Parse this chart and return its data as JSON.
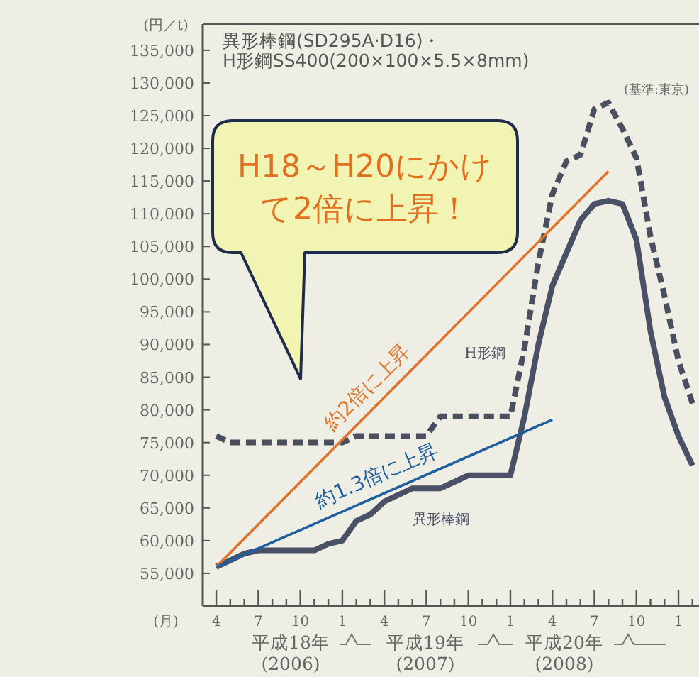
{
  "chart_data": {
    "type": "line",
    "title": "異形棒鋼(SD295A·D16)・",
    "subtitle": "H形鋼SS400(200×100×5.5×8mm)",
    "xlabel": "(月)",
    "ylabel": "(円／t)",
    "xlim": [
      "2006-03-02",
      "2009-02-15"
    ],
    "ylim": [
      50000,
      139000
    ],
    "xticks": [
      {
        "value": "2006-04",
        "label": "4"
      },
      {
        "value": "2006-05",
        "label": null
      },
      {
        "value": "2006-06",
        "label": null
      },
      {
        "value": "2006-07",
        "label": "7"
      },
      {
        "value": "2006-08",
        "label": null
      },
      {
        "value": "2006-09",
        "label": null
      },
      {
        "value": "2006-10",
        "label": "10"
      },
      {
        "value": "2006-11",
        "label": null
      },
      {
        "value": "2006-12",
        "label": null
      },
      {
        "value": "2007-01",
        "label": "1"
      },
      {
        "value": "2007-02",
        "label": null
      },
      {
        "value": "2007-03",
        "label": null
      },
      {
        "value": "2007-04",
        "label": "4"
      },
      {
        "value": "2007-05",
        "label": null
      },
      {
        "value": "2007-06",
        "label": null
      },
      {
        "value": "2007-07",
        "label": "7"
      },
      {
        "value": "2007-08",
        "label": null
      },
      {
        "value": "2007-09",
        "label": null
      },
      {
        "value": "2007-10",
        "label": "10"
      },
      {
        "value": "2007-11",
        "label": null
      },
      {
        "value": "2007-12",
        "label": null
      },
      {
        "value": "2008-01",
        "label": "1"
      },
      {
        "value": "2008-02",
        "label": null
      },
      {
        "value": "2008-03",
        "label": null
      },
      {
        "value": "2008-04",
        "label": "4"
      },
      {
        "value": "2008-05",
        "label": null
      },
      {
        "value": "2008-06",
        "label": null
      },
      {
        "value": "2008-07",
        "label": "7"
      },
      {
        "value": "2008-08",
        "label": null
      },
      {
        "value": "2008-09",
        "label": null
      },
      {
        "value": "2008-10",
        "label": "10"
      },
      {
        "value": "2008-11",
        "label": null
      },
      {
        "value": "2008-12",
        "label": null
      },
      {
        "value": "2009-01",
        "label": "1"
      },
      {
        "value": "2009-02",
        "label": null
      }
    ],
    "yticks": [
      {
        "value": 55000,
        "label": "55,000"
      },
      {
        "value": 60000,
        "label": "60,000"
      },
      {
        "value": 65000,
        "label": "65,000"
      },
      {
        "value": 70000,
        "label": "70,000"
      },
      {
        "value": 75000,
        "label": "75,000"
      },
      {
        "value": 80000,
        "label": "80,000"
      },
      {
        "value": 85000,
        "label": "85,000"
      },
      {
        "value": 90000,
        "label": "90,000"
      },
      {
        "value": 95000,
        "label": "95,000"
      },
      {
        "value": 100000,
        "label": "100,000"
      },
      {
        "value": 105000,
        "label": "105,000"
      },
      {
        "value": 110000,
        "label": "110,000"
      },
      {
        "value": 115000,
        "label": "115,000"
      },
      {
        "value": 120000,
        "label": "120,000"
      },
      {
        "value": 125000,
        "label": "125,000"
      },
      {
        "value": 130000,
        "label": "130,000"
      },
      {
        "value": 135000,
        "label": "135,000"
      }
    ],
    "series": [
      {
        "name": "H形鋼",
        "line_style": "dashed",
        "color": "#4a4f60",
        "x": [
          "2006-04",
          "2006-05",
          "2006-06",
          "2006-07",
          "2006-08",
          "2006-09",
          "2006-10",
          "2006-11",
          "2006-12",
          "2007-01",
          "2007-02",
          "2007-03",
          "2007-04",
          "2007-05",
          "2007-06",
          "2007-07",
          "2007-08",
          "2007-09",
          "2007-10",
          "2007-11",
          "2007-12",
          "2008-01",
          "2008-02",
          "2008-03",
          "2008-04",
          "2008-05",
          "2008-06",
          "2008-07",
          "2008-08",
          "2008-09",
          "2008-10",
          "2008-11",
          "2008-12",
          "2009-01",
          "2009-02"
        ],
        "values": [
          76000,
          75000,
          75000,
          75000,
          75000,
          75000,
          75000,
          75000,
          75000,
          75000,
          76000,
          76000,
          76000,
          76000,
          76000,
          76000,
          79000,
          79000,
          79000,
          79000,
          79000,
          79000,
          89500,
          102500,
          113000,
          118000,
          119000,
          126000,
          127000,
          123000,
          118500,
          106500,
          97500,
          87500,
          81000
        ]
      },
      {
        "name": "異形棒鋼",
        "line_style": "solid",
        "color": "#4a5066",
        "x": [
          "2006-04",
          "2006-05",
          "2006-06",
          "2006-07",
          "2006-08",
          "2006-09",
          "2006-10",
          "2006-11",
          "2006-12",
          "2007-01",
          "2007-02",
          "2007-03",
          "2007-04",
          "2007-05",
          "2007-06",
          "2007-07",
          "2007-08",
          "2007-09",
          "2007-10",
          "2007-11",
          "2007-12",
          "2008-01",
          "2008-02",
          "2008-03",
          "2008-04",
          "2008-05",
          "2008-06",
          "2008-07",
          "2008-08",
          "2008-09",
          "2008-10",
          "2008-11",
          "2008-12",
          "2009-01",
          "2009-02"
        ],
        "values": [
          56000,
          57000,
          58000,
          58500,
          58500,
          58500,
          58500,
          58500,
          59500,
          60000,
          63000,
          64000,
          66000,
          67000,
          68000,
          68000,
          68000,
          69000,
          70000,
          70000,
          70000,
          70000,
          79000,
          90000,
          99000,
          104000,
          109000,
          111500,
          112000,
          111500,
          106000,
          92000,
          82000,
          76000,
          71500
        ]
      },
      {
        "name": "約2倍に上昇",
        "line_style": "solid",
        "color": "#e0732a",
        "x": [
          "2006-04",
          "2008-08"
        ],
        "values": [
          56000,
          116500
        ]
      },
      {
        "name": "約1.3倍に上昇",
        "line_style": "solid",
        "color": "#1f5fa0",
        "x": [
          "2006-04",
          "2008-04"
        ],
        "values": [
          56000,
          78500
        ]
      }
    ],
    "annotations": [
      "(基準:東京)",
      "H18～H20にかけて2倍に上昇！",
      "平成18年\n(2006)",
      "平成19年\n(2007)",
      "平成20年\n(2008)"
    ]
  }
}
